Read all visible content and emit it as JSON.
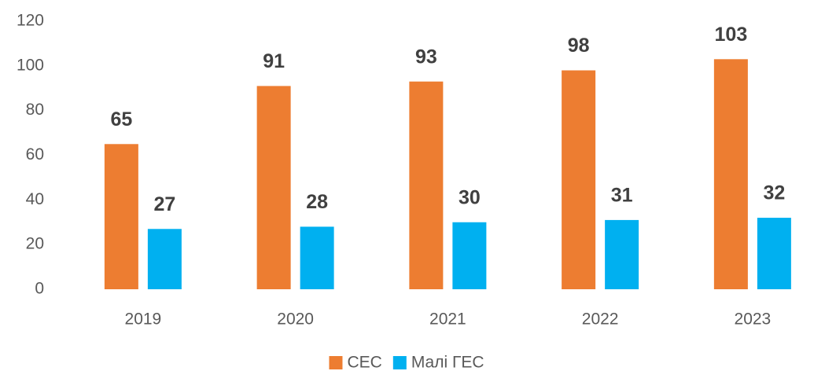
{
  "chart_data": {
    "type": "bar",
    "categories": [
      "2019",
      "2020",
      "2021",
      "2022",
      "2023"
    ],
    "series": [
      {
        "name": "СЕС",
        "color": "#ED7D31",
        "values": [
          65,
          91,
          93,
          98,
          103
        ]
      },
      {
        "name": "Малі ГЕС",
        "color": "#00B0F0",
        "values": [
          27,
          28,
          30,
          31,
          32
        ]
      }
    ],
    "ylim": [
      0,
      120
    ],
    "yticks": [
      0,
      20,
      40,
      60,
      80,
      100,
      120
    ],
    "grid": false,
    "legend": "bottom"
  }
}
